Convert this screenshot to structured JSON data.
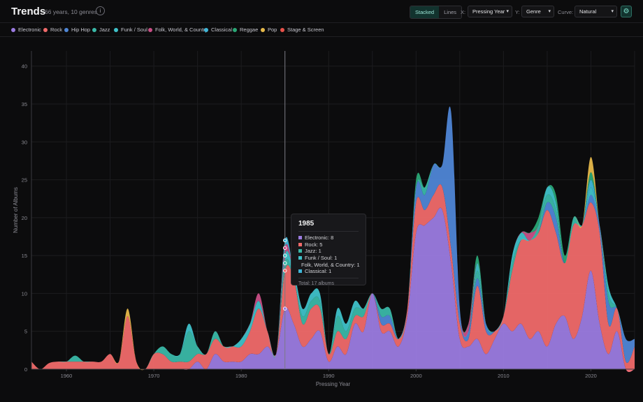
{
  "header": {
    "title": "Trends",
    "subtitle": "66 years, 10 genres",
    "mode_options": [
      "Stacked",
      "Lines"
    ],
    "mode_selected": "Stacked",
    "x_label": "X:",
    "x_value": "Pressing Year",
    "y_label": "Y:",
    "y_value": "Genre",
    "curve_label": "Curve:",
    "curve_value": "Natural",
    "info_icon": "info-icon",
    "settings_icon": "gear-icon"
  },
  "colors": {
    "Electronic": "#9b7be0",
    "Rock": "#f06a6a",
    "Hip Hop": "#4f86d6",
    "Jazz": "#3ab8a8",
    "Funk / Soul": "#3fc1c9",
    "Folk, World, & Country": "#c94f86",
    "Classical": "#3fb6d8",
    "Reggae": "#2aa876",
    "Pop": "#e6b84a",
    "Stage & Screen": "#e8524a"
  },
  "chart_data": {
    "type": "area",
    "stacked": true,
    "xlabel": "Pressing Year",
    "ylabel": "Number of Albums",
    "xlim": [
      1956,
      2025
    ],
    "ylim": [
      0,
      42
    ],
    "xticks": [
      1960,
      1970,
      1980,
      1990,
      2000,
      2010,
      2020
    ],
    "yticks": [
      0,
      5,
      10,
      15,
      20,
      25,
      30,
      35,
      40
    ],
    "grid": true,
    "legend_position": "top",
    "x": [
      1956,
      1957,
      1958,
      1959,
      1960,
      1961,
      1962,
      1963,
      1964,
      1965,
      1966,
      1967,
      1968,
      1969,
      1970,
      1971,
      1972,
      1973,
      1974,
      1975,
      1976,
      1977,
      1978,
      1979,
      1980,
      1981,
      1982,
      1983,
      1984,
      1985,
      1986,
      1987,
      1988,
      1989,
      1990,
      1991,
      1992,
      1993,
      1994,
      1995,
      1996,
      1997,
      1998,
      1999,
      2000,
      2001,
      2002,
      2003,
      2004,
      2005,
      2006,
      2007,
      2008,
      2009,
      2010,
      2011,
      2012,
      2013,
      2014,
      2015,
      2016,
      2017,
      2018,
      2019,
      2020,
      2021,
      2022,
      2023,
      2024,
      2025
    ],
    "series": [
      {
        "name": "Electronic",
        "values": [
          0,
          0,
          0,
          0,
          0,
          0,
          0,
          0,
          0,
          0,
          0,
          0,
          0,
          0,
          0,
          0,
          0,
          0,
          0,
          1,
          0,
          2,
          1,
          1,
          1,
          2,
          2,
          3,
          2,
          8,
          6,
          3,
          4,
          5,
          1,
          3,
          2,
          6,
          5,
          10,
          5,
          5,
          3,
          7,
          18,
          19,
          20,
          21,
          14,
          4,
          3,
          4,
          2,
          4,
          6,
          5,
          6,
          4,
          5,
          3,
          6,
          7,
          4,
          7,
          13,
          6,
          2,
          5,
          0,
          0
        ]
      },
      {
        "name": "Rock",
        "values": [
          1,
          0,
          0.8,
          1,
          1,
          1,
          1,
          1,
          1,
          2,
          1,
          7,
          1,
          0,
          2,
          2,
          1,
          1,
          1,
          1,
          2,
          2,
          2,
          2,
          2,
          3,
          6,
          2,
          0,
          5,
          6,
          3,
          4,
          3,
          1,
          2,
          2,
          1,
          2,
          0,
          1,
          1,
          1,
          1,
          4,
          2,
          3,
          3,
          2,
          2,
          1,
          7,
          3,
          1,
          1,
          8,
          11,
          13,
          13,
          18,
          12,
          7,
          15,
          12,
          9,
          12,
          4,
          3,
          1,
          3
        ]
      },
      {
        "name": "Hip Hop",
        "values": [
          0,
          0,
          0,
          0,
          0,
          0,
          0,
          0,
          0,
          0,
          0,
          0,
          0,
          0,
          0,
          0,
          0,
          0,
          0,
          0,
          0,
          0,
          0,
          0,
          0,
          0,
          0,
          0,
          0,
          0,
          0,
          0,
          0,
          0,
          0,
          0,
          0,
          0,
          0,
          0,
          1,
          1,
          0,
          0,
          2,
          2,
          4,
          3,
          18,
          2,
          1,
          1,
          1,
          0,
          0,
          0,
          0,
          0,
          0,
          1,
          2,
          0,
          0,
          0,
          1,
          1,
          3,
          0,
          3,
          1
        ]
      },
      {
        "name": "Jazz",
        "values": [
          0,
          0,
          0,
          0,
          0,
          0.8,
          0,
          0,
          0,
          0,
          0,
          0,
          0,
          0,
          0,
          1,
          1,
          1,
          4,
          1,
          0,
          1,
          0,
          0,
          0,
          0,
          0,
          0,
          0,
          1,
          0,
          1,
          1,
          1,
          0,
          2,
          1,
          1,
          1,
          0,
          1,
          1,
          0,
          0,
          0,
          1,
          0,
          0,
          0,
          0,
          0,
          1,
          0,
          0,
          0,
          1,
          0,
          0,
          1,
          1,
          1,
          0,
          1,
          0,
          0,
          0,
          1,
          0,
          0,
          0
        ]
      },
      {
        "name": "Funk / Soul",
        "values": [
          0,
          0,
          0,
          0,
          0,
          0,
          0,
          0,
          0,
          0,
          0,
          0,
          0,
          0,
          0,
          0,
          0,
          0,
          1,
          0,
          0,
          0,
          0,
          0,
          1,
          1,
          1,
          0,
          0,
          1,
          1,
          1,
          1,
          1,
          0,
          1,
          1,
          1,
          0,
          0,
          0,
          0,
          0,
          0,
          0,
          0,
          0,
          0,
          0,
          0,
          0,
          1,
          0,
          0,
          0,
          1,
          1,
          0,
          0,
          1,
          1,
          0,
          0,
          0,
          1,
          0,
          1,
          0,
          0,
          0
        ]
      },
      {
        "name": "Folk, World, & Country",
        "values": [
          0,
          0,
          0,
          0,
          0,
          0,
          0,
          0,
          0,
          0,
          0,
          0,
          0,
          0,
          0,
          0,
          0,
          0,
          0,
          0,
          0,
          0,
          0,
          0,
          0,
          0,
          1,
          0,
          0,
          1,
          0,
          0,
          0,
          0,
          0,
          0,
          0,
          0,
          0,
          0,
          0,
          0,
          0,
          0,
          0,
          0,
          0,
          0,
          0,
          0,
          1,
          0,
          0,
          0,
          0,
          0,
          0,
          1,
          0,
          0,
          0,
          0,
          0,
          0,
          0,
          0,
          0,
          0,
          0,
          0
        ]
      },
      {
        "name": "Classical",
        "values": [
          0,
          0,
          0,
          0,
          0,
          0,
          0,
          0,
          0,
          0,
          0,
          0,
          0,
          0,
          0,
          0,
          0,
          0,
          0,
          0,
          0,
          0,
          0,
          0,
          0,
          0,
          0,
          0,
          0,
          1,
          0,
          0,
          0,
          0,
          0,
          0,
          0,
          0,
          0,
          0,
          0,
          0,
          0,
          0,
          0,
          0,
          0,
          0,
          0,
          0,
          0,
          0,
          0,
          0,
          0,
          0,
          0,
          0,
          0,
          0,
          0,
          0,
          0,
          0,
          1,
          0,
          0,
          0,
          0,
          0
        ]
      },
      {
        "name": "Reggae",
        "values": [
          0,
          0,
          0,
          0,
          0,
          0,
          0,
          0,
          0,
          0,
          0,
          0,
          0,
          0,
          0,
          0,
          0,
          0,
          0,
          0,
          0,
          0,
          0,
          0,
          0,
          0,
          0,
          0,
          0,
          0,
          0,
          0,
          0,
          0,
          0,
          0,
          0,
          0,
          0,
          0,
          0,
          0,
          0,
          0,
          1,
          0,
          0,
          0,
          0,
          0,
          0,
          1,
          0,
          0,
          0,
          0,
          0,
          0,
          1,
          0,
          1,
          1,
          0,
          0,
          1,
          0,
          0,
          0,
          0,
          0
        ]
      },
      {
        "name": "Pop",
        "values": [
          0,
          0,
          0,
          0,
          0,
          0,
          0,
          0,
          0,
          0,
          0,
          1,
          0,
          0,
          0,
          0,
          0,
          0,
          0,
          0,
          0,
          0,
          0,
          0,
          0,
          0,
          0,
          0,
          0,
          0,
          0,
          0,
          0,
          0,
          0,
          0,
          0,
          0,
          0,
          0,
          0,
          0,
          0,
          0,
          0,
          0,
          0,
          0,
          0,
          0,
          0,
          0,
          0,
          0,
          0,
          0,
          0,
          0,
          0,
          0,
          0,
          0,
          0,
          0,
          2,
          0,
          0,
          0,
          0,
          0
        ]
      },
      {
        "name": "Stage & Screen",
        "values": [
          0,
          0,
          0,
          0,
          0,
          0,
          0,
          0,
          0,
          0,
          0,
          0,
          0,
          0,
          0,
          0,
          0,
          0,
          0,
          0,
          0,
          0,
          0,
          0,
          0,
          0,
          0,
          0,
          0,
          0,
          0,
          0,
          0,
          0,
          0,
          0,
          0,
          0,
          0,
          0,
          0,
          0,
          0,
          0,
          0,
          0,
          0,
          0,
          0,
          0,
          0,
          0,
          0,
          0,
          0,
          0,
          0,
          0,
          0,
          0,
          0,
          0,
          0,
          0,
          0,
          0,
          0,
          0,
          0,
          0
        ]
      }
    ],
    "highlight_x": 1985
  },
  "tooltip": {
    "title": "1985",
    "rows": [
      {
        "genre": "Electronic",
        "text": "Electronic: 8"
      },
      {
        "genre": "Rock",
        "text": "Rock: 5"
      },
      {
        "genre": "Jazz",
        "text": "Jazz: 1"
      },
      {
        "genre": "Funk / Soul",
        "text": "Funk / Soul: 1"
      },
      {
        "genre": "Folk, World, & Country",
        "text": "Folk, World, & Country: 1"
      },
      {
        "genre": "Classical",
        "text": "Classical: 1"
      }
    ],
    "total": "Total: 17 albums"
  }
}
